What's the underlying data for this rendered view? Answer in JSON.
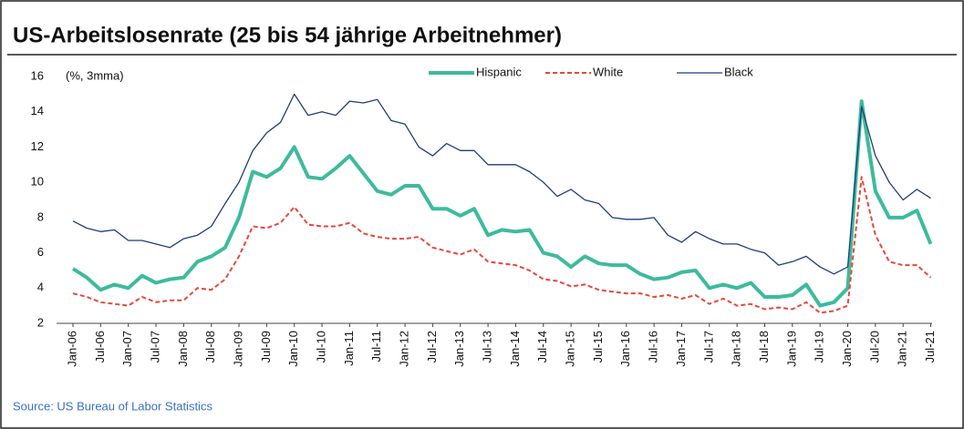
{
  "chart_data": {
    "type": "line",
    "title": "US-Arbeitslosenrate (25 bis 54 jährige Arbeitnehmer)",
    "annotation": "(%, 3mma)",
    "source": "Source: US Bureau of Labor Statistics",
    "categories": [
      "Jan-06",
      null,
      "Jul-06",
      null,
      "Jan-07",
      null,
      "Jul-07",
      null,
      "Jan-08",
      null,
      "Jul-08",
      null,
      "Jan-09",
      null,
      "Jul-09",
      null,
      "Jan-10",
      null,
      "Jul-10",
      null,
      "Jan-11",
      null,
      "Jul-11",
      null,
      "Jan-12",
      null,
      "Jul-12",
      null,
      "Jan-13",
      null,
      "Jul-13",
      null,
      "Jan-14",
      null,
      "Jul-14",
      null,
      "Jan-15",
      null,
      "Jul-15",
      null,
      "Jan-16",
      null,
      "Jul-16",
      null,
      "Jan-17",
      null,
      "Jul-17",
      null,
      "Jan-18",
      null,
      "Jul-18",
      null,
      "Jan-19",
      null,
      "Jul-19",
      null,
      "Jan-20",
      null,
      "Jul-20",
      null,
      "Jan-21",
      null,
      "Jul-21"
    ],
    "series": [
      {
        "name": "Hispanic",
        "color": "#3dbb9c",
        "dash": false,
        "width": 4,
        "values": [
          5.1,
          4.6,
          3.9,
          4.2,
          4.0,
          4.7,
          4.3,
          4.5,
          4.6,
          5.5,
          5.8,
          6.3,
          8.0,
          10.6,
          10.3,
          10.8,
          12.0,
          10.3,
          10.2,
          10.8,
          11.5,
          10.5,
          9.5,
          9.3,
          9.8,
          9.8,
          8.5,
          8.5,
          8.1,
          8.5,
          7.0,
          7.3,
          7.2,
          7.3,
          6.0,
          5.8,
          5.2,
          5.8,
          5.4,
          5.3,
          5.3,
          4.8,
          4.5,
          4.6,
          4.9,
          5.0,
          4.0,
          4.2,
          4.0,
          4.3,
          3.5,
          3.5,
          3.6,
          4.2,
          3.0,
          3.2,
          4.0,
          14.6,
          9.5,
          8.0,
          8.0,
          8.4,
          6.5
        ]
      },
      {
        "name": "White",
        "color": "#e8473a",
        "dash": true,
        "width": 2,
        "values": [
          3.7,
          3.5,
          3.2,
          3.1,
          3.0,
          3.5,
          3.2,
          3.3,
          3.3,
          4.0,
          3.9,
          4.5,
          5.8,
          7.5,
          7.4,
          7.7,
          8.6,
          7.6,
          7.5,
          7.5,
          7.7,
          7.1,
          6.9,
          6.8,
          6.8,
          6.9,
          6.3,
          6.1,
          5.9,
          6.2,
          5.5,
          5.4,
          5.3,
          5.0,
          4.5,
          4.4,
          4.1,
          4.2,
          3.9,
          3.8,
          3.7,
          3.7,
          3.5,
          3.6,
          3.4,
          3.6,
          3.1,
          3.4,
          3.0,
          3.1,
          2.8,
          2.9,
          2.8,
          3.2,
          2.6,
          2.7,
          3.0,
          10.3,
          7.0,
          5.5,
          5.3,
          5.3,
          4.6
        ]
      },
      {
        "name": "Black",
        "color": "#1f3d7a",
        "dash": false,
        "width": 1.3,
        "values": [
          7.8,
          7.4,
          7.2,
          7.3,
          6.7,
          6.7,
          6.5,
          6.3,
          6.8,
          7.0,
          7.5,
          8.8,
          10.0,
          11.8,
          12.8,
          13.4,
          15.0,
          13.8,
          14.0,
          13.8,
          14.6,
          14.5,
          14.7,
          13.5,
          13.3,
          12.0,
          11.5,
          12.2,
          11.8,
          11.8,
          11.0,
          11.0,
          11.0,
          10.6,
          10.0,
          9.2,
          9.6,
          9.0,
          8.8,
          8.0,
          7.9,
          7.9,
          8.0,
          7.0,
          6.6,
          7.2,
          6.8,
          6.5,
          6.5,
          6.2,
          6.0,
          5.3,
          5.5,
          5.8,
          5.2,
          4.8,
          5.2,
          14.3,
          11.5,
          10.0,
          9.0,
          9.6,
          9.1
        ]
      }
    ],
    "ylim": [
      2,
      16
    ],
    "yticks": [
      2,
      4,
      6,
      8,
      10,
      12,
      14,
      16
    ]
  }
}
